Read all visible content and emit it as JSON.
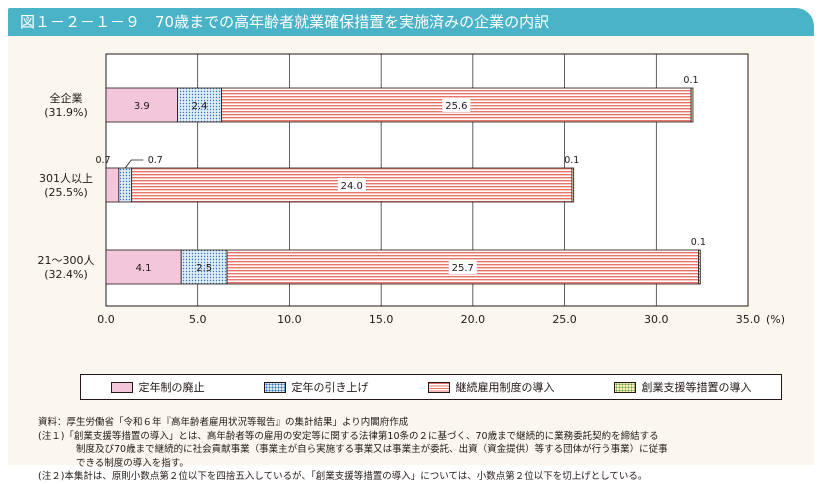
{
  "title": "図１－２－１－９　70歳までの高年齢者就業確保措置を実施済みの企業の内訳",
  "colors": {
    "title_bg": "#4bb3c8",
    "panel_bg": "#fbf7ef",
    "abolition": "#f3c6dc",
    "raise": "#dcedf7",
    "continued": "#e9756a",
    "support": "#f9f3c3"
  },
  "legend": [
    {
      "label": "定年制の廃止",
      "icon": "pink-swatch"
    },
    {
      "label": "定年の引き上げ",
      "icon": "blue-dotted-swatch"
    },
    {
      "label": "継続雇用制度の導入",
      "icon": "red-striped-swatch"
    },
    {
      "label": "創業支援等措置の導入",
      "icon": "yellow-dotted-swatch"
    }
  ],
  "chart_data": {
    "type": "bar",
    "orientation": "horizontal",
    "stacked": true,
    "categories": [
      "全企業",
      "301人以上",
      "21～300人"
    ],
    "category_shares": [
      "(31.9%)",
      "(25.5%)",
      "(32.4%)"
    ],
    "series": [
      {
        "name": "定年制の廃止",
        "values": [
          3.9,
          0.7,
          4.1
        ]
      },
      {
        "name": "定年の引き上げ",
        "values": [
          2.4,
          0.7,
          2.5
        ]
      },
      {
        "name": "継続雇用制度の導入",
        "values": [
          25.6,
          24.0,
          25.7
        ]
      },
      {
        "name": "創業支援等措置の導入",
        "values": [
          0.1,
          0.1,
          0.1
        ]
      }
    ],
    "xlim": [
      0,
      35
    ],
    "xticks": [
      "0.0",
      "5.0",
      "10.0",
      "15.0",
      "20.0",
      "25.0",
      "30.0",
      "35.0"
    ],
    "unit": "(%)",
    "grid": true
  },
  "notes": [
    "資料：厚生労働省「令和６年『高年齢者雇用状況等報告』の集計結果」より内閣府作成",
    "(注１)「創業支援等措置の導入」とは、高年齢者等の雇用の安定等に関する法律第10条の２に基づく、70歳まで継続的に業務委託契約を締結する",
    "制度及び70歳まで継続的に社会貢献事業（事業主が自ら実施する事業又は事業主が委託、出資（資金提供）等する団体が行う事業）に従事",
    "できる制度の導入を指す。",
    "(注２)本集計は、原則小数点第２位以下を四捨五入しているが、「創業支援等措置の導入」については、小数点第２位以下を切上げとしている。"
  ]
}
